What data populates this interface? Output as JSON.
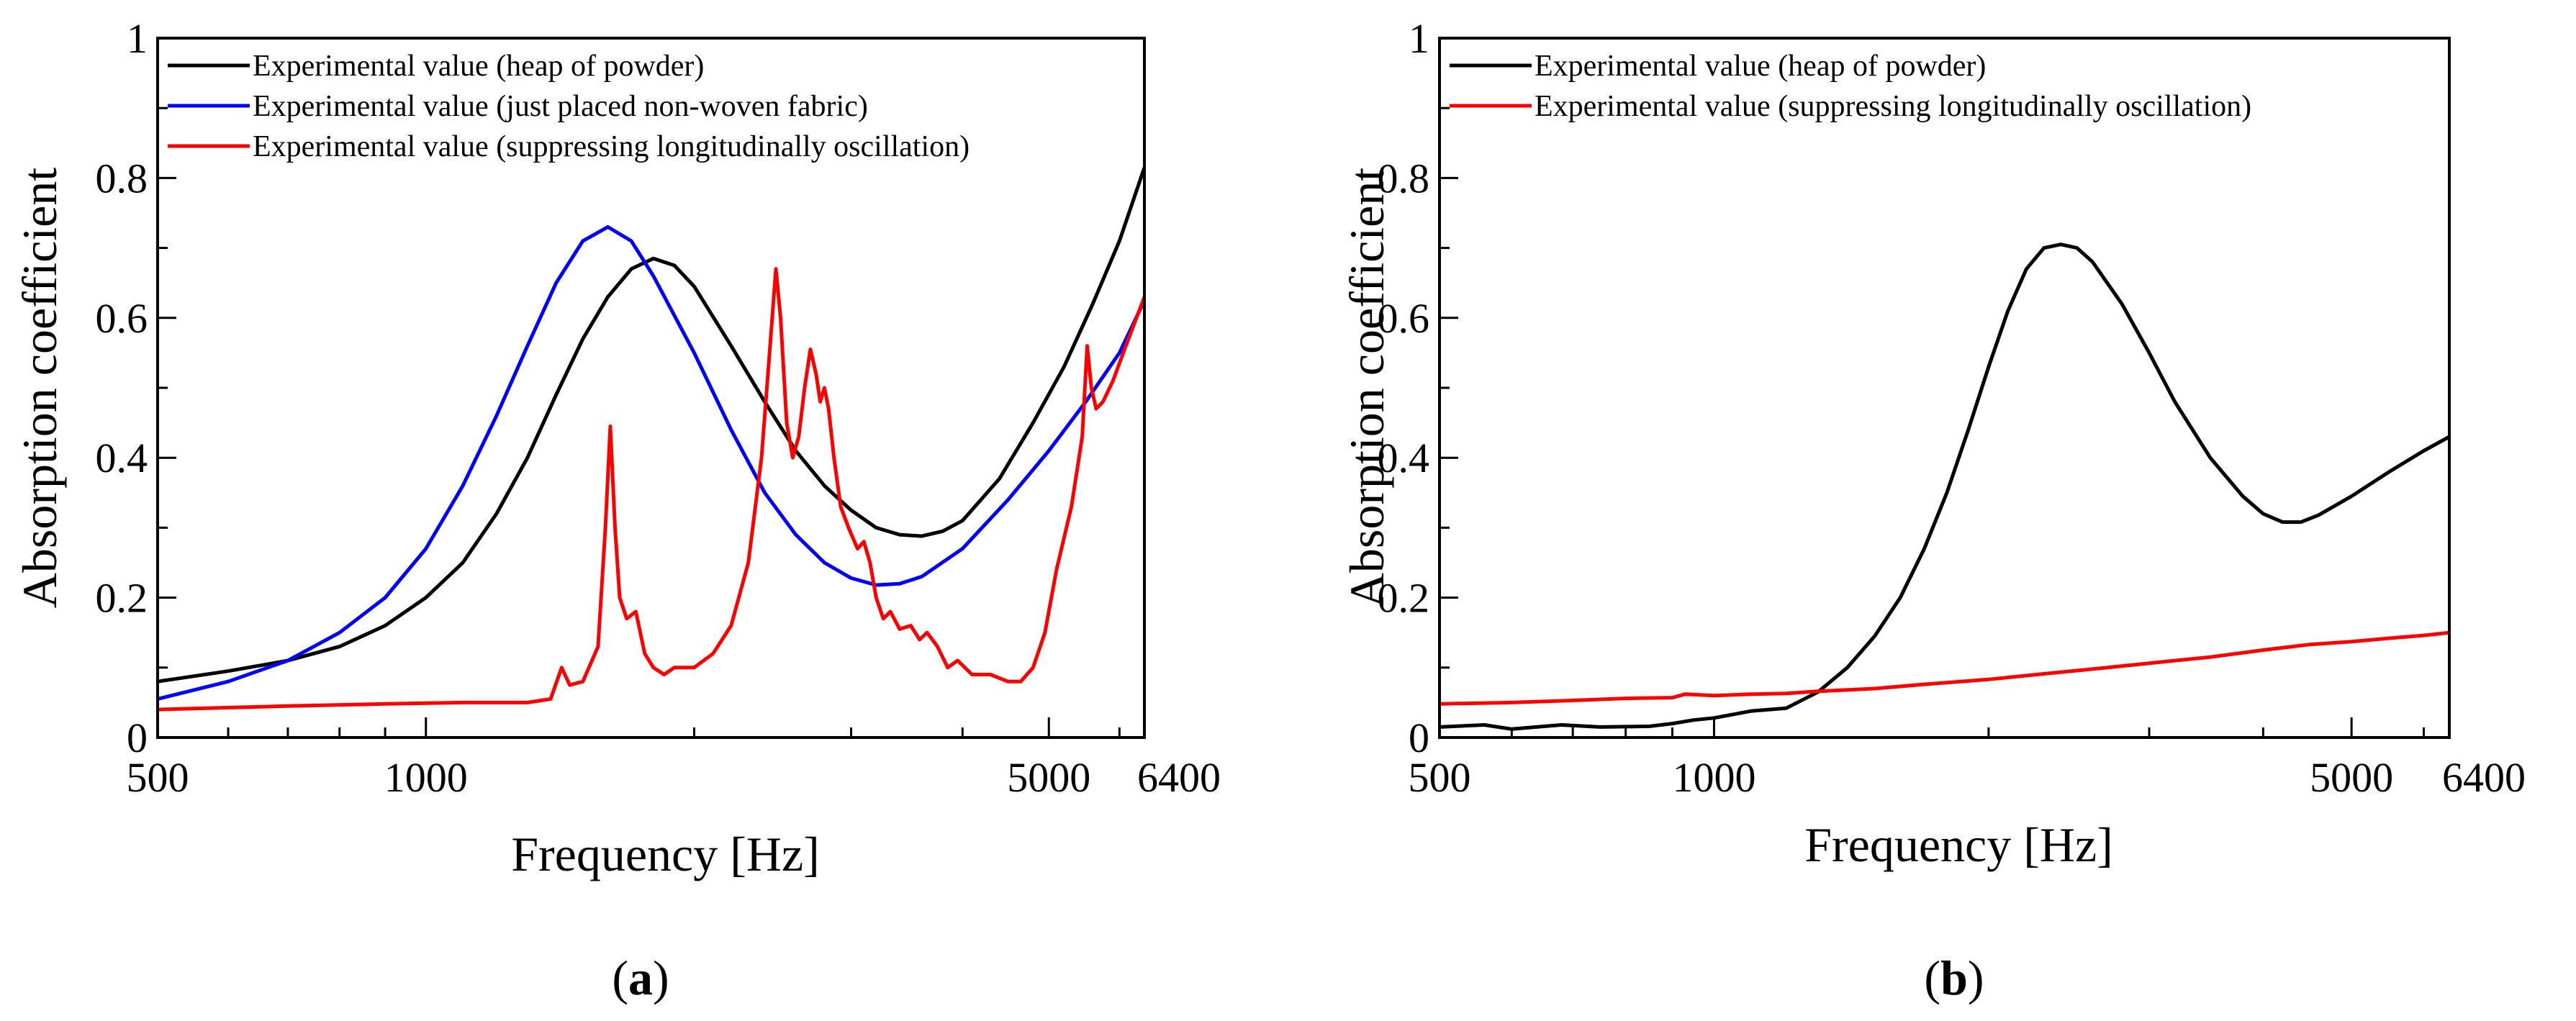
{
  "chart_data": [
    {
      "panel": "(a)",
      "panel_letter": "a",
      "type": "line",
      "xscale": "log",
      "xlabel": "Frequency [Hz]",
      "ylabel": "Absorption coefficient",
      "xlim": [
        500,
        6400
      ],
      "ylim": [
        0,
        1
      ],
      "xtick_values": [
        500,
        1000,
        5000,
        6400
      ],
      "xtick_labels": [
        "500",
        "1000",
        "5000",
        "6400"
      ],
      "ytick_values": [
        0,
        0.2,
        0.4,
        0.6,
        0.8,
        1
      ],
      "ytick_labels": [
        "0",
        "0.2",
        "0.4",
        "0.6",
        "0.8",
        "1"
      ],
      "legend_position": "top-left",
      "series": [
        {
          "name": "Experimental value (heap of powder)",
          "color": "#000000",
          "points": [
            [
              500,
              0.08
            ],
            [
              600,
              0.095
            ],
            [
              700,
              0.11
            ],
            [
              800,
              0.13
            ],
            [
              900,
              0.16
            ],
            [
              1000,
              0.2
            ],
            [
              1100,
              0.25
            ],
            [
              1200,
              0.32
            ],
            [
              1300,
              0.4
            ],
            [
              1400,
              0.49
            ],
            [
              1500,
              0.57
            ],
            [
              1600,
              0.63
            ],
            [
              1700,
              0.67
            ],
            [
              1800,
              0.685
            ],
            [
              1900,
              0.675
            ],
            [
              2000,
              0.645
            ],
            [
              2200,
              0.56
            ],
            [
              2400,
              0.48
            ],
            [
              2600,
              0.41
            ],
            [
              2800,
              0.36
            ],
            [
              3000,
              0.325
            ],
            [
              3200,
              0.3
            ],
            [
              3400,
              0.29
            ],
            [
              3600,
              0.288
            ],
            [
              3800,
              0.295
            ],
            [
              4000,
              0.31
            ],
            [
              4400,
              0.37
            ],
            [
              4800,
              0.45
            ],
            [
              5200,
              0.53
            ],
            [
              5600,
              0.62
            ],
            [
              6000,
              0.71
            ],
            [
              6400,
              0.815
            ]
          ]
        },
        {
          "name": "Experimental value (just placed non-woven fabric)",
          "color": "#0000ff",
          "points": [
            [
              500,
              0.055
            ],
            [
              600,
              0.08
            ],
            [
              700,
              0.11
            ],
            [
              800,
              0.15
            ],
            [
              900,
              0.2
            ],
            [
              1000,
              0.27
            ],
            [
              1100,
              0.36
            ],
            [
              1200,
              0.46
            ],
            [
              1300,
              0.56
            ],
            [
              1400,
              0.65
            ],
            [
              1500,
              0.71
            ],
            [
              1600,
              0.73
            ],
            [
              1700,
              0.71
            ],
            [
              1800,
              0.66
            ],
            [
              2000,
              0.55
            ],
            [
              2200,
              0.44
            ],
            [
              2400,
              0.35
            ],
            [
              2600,
              0.29
            ],
            [
              2800,
              0.25
            ],
            [
              3000,
              0.228
            ],
            [
              3200,
              0.218
            ],
            [
              3400,
              0.22
            ],
            [
              3600,
              0.23
            ],
            [
              4000,
              0.27
            ],
            [
              4500,
              0.34
            ],
            [
              5000,
              0.41
            ],
            [
              5500,
              0.48
            ],
            [
              6000,
              0.55
            ],
            [
              6400,
              0.625
            ]
          ]
        },
        {
          "name": "Experimental value (suppressing longitudinally oscillation)",
          "color": "#ff0000",
          "points": [
            [
              500,
              0.04
            ],
            [
              700,
              0.045
            ],
            [
              900,
              0.048
            ],
            [
              1100,
              0.05
            ],
            [
              1300,
              0.05
            ],
            [
              1380,
              0.055
            ],
            [
              1420,
              0.1
            ],
            [
              1450,
              0.075
            ],
            [
              1500,
              0.08
            ],
            [
              1560,
              0.13
            ],
            [
              1590,
              0.3
            ],
            [
              1610,
              0.445
            ],
            [
              1630,
              0.3
            ],
            [
              1650,
              0.2
            ],
            [
              1680,
              0.17
            ],
            [
              1720,
              0.18
            ],
            [
              1760,
              0.12
            ],
            [
              1800,
              0.1
            ],
            [
              1850,
              0.09
            ],
            [
              1900,
              0.1
            ],
            [
              2000,
              0.1
            ],
            [
              2100,
              0.12
            ],
            [
              2200,
              0.16
            ],
            [
              2300,
              0.25
            ],
            [
              2380,
              0.4
            ],
            [
              2430,
              0.55
            ],
            [
              2470,
              0.67
            ],
            [
              2500,
              0.6
            ],
            [
              2540,
              0.45
            ],
            [
              2580,
              0.4
            ],
            [
              2620,
              0.43
            ],
            [
              2660,
              0.5
            ],
            [
              2700,
              0.555
            ],
            [
              2740,
              0.52
            ],
            [
              2770,
              0.48
            ],
            [
              2800,
              0.5
            ],
            [
              2830,
              0.47
            ],
            [
              2870,
              0.4
            ],
            [
              2920,
              0.33
            ],
            [
              2980,
              0.3
            ],
            [
              3050,
              0.27
            ],
            [
              3100,
              0.28
            ],
            [
              3150,
              0.25
            ],
            [
              3200,
              0.2
            ],
            [
              3260,
              0.17
            ],
            [
              3320,
              0.18
            ],
            [
              3400,
              0.155
            ],
            [
              3500,
              0.16
            ],
            [
              3580,
              0.14
            ],
            [
              3650,
              0.15
            ],
            [
              3750,
              0.13
            ],
            [
              3850,
              0.1
            ],
            [
              3950,
              0.11
            ],
            [
              4100,
              0.09
            ],
            [
              4300,
              0.09
            ],
            [
              4500,
              0.08
            ],
            [
              4650,
              0.08
            ],
            [
              4800,
              0.1
            ],
            [
              4950,
              0.15
            ],
            [
              5100,
              0.24
            ],
            [
              5300,
              0.33
            ],
            [
              5450,
              0.43
            ],
            [
              5520,
              0.56
            ],
            [
              5580,
              0.5
            ],
            [
              5650,
              0.47
            ],
            [
              5750,
              0.48
            ],
            [
              5900,
              0.51
            ],
            [
              6100,
              0.56
            ],
            [
              6400,
              0.63
            ]
          ]
        }
      ]
    },
    {
      "panel": "(b)",
      "panel_letter": "b",
      "type": "line",
      "xscale": "log",
      "xlabel": "Frequency [Hz]",
      "ylabel": "Absorption coefficient",
      "xlim": [
        500,
        6400
      ],
      "ylim": [
        0,
        1
      ],
      "xtick_values": [
        500,
        1000,
        5000,
        6400
      ],
      "xtick_labels": [
        "500",
        "1000",
        "5000",
        "6400"
      ],
      "ytick_values": [
        0,
        0.2,
        0.4,
        0.6,
        0.8,
        1
      ],
      "ytick_labels": [
        "0",
        "0.2",
        "0.4",
        "0.6",
        "0.8",
        "1"
      ],
      "legend_position": "top-left",
      "series": [
        {
          "name": "Experimental value (heap of powder)",
          "color": "#000000",
          "points": [
            [
              500,
              0.015
            ],
            [
              560,
              0.018
            ],
            [
              600,
              0.012
            ],
            [
              680,
              0.018
            ],
            [
              750,
              0.015
            ],
            [
              850,
              0.016
            ],
            [
              900,
              0.02
            ],
            [
              950,
              0.025
            ],
            [
              1000,
              0.028
            ],
            [
              1100,
              0.038
            ],
            [
              1200,
              0.042
            ],
            [
              1300,
              0.065
            ],
            [
              1400,
              0.1
            ],
            [
              1500,
              0.145
            ],
            [
              1600,
              0.2
            ],
            [
              1700,
              0.27
            ],
            [
              1800,
              0.35
            ],
            [
              1900,
              0.44
            ],
            [
              2000,
              0.53
            ],
            [
              2100,
              0.61
            ],
            [
              2200,
              0.67
            ],
            [
              2300,
              0.7
            ],
            [
              2400,
              0.705
            ],
            [
              2500,
              0.7
            ],
            [
              2600,
              0.68
            ],
            [
              2800,
              0.62
            ],
            [
              3000,
              0.55
            ],
            [
              3200,
              0.48
            ],
            [
              3500,
              0.4
            ],
            [
              3800,
              0.345
            ],
            [
              4000,
              0.32
            ],
            [
              4200,
              0.308
            ],
            [
              4400,
              0.308
            ],
            [
              4600,
              0.318
            ],
            [
              5000,
              0.345
            ],
            [
              5500,
              0.38
            ],
            [
              6000,
              0.41
            ],
            [
              6400,
              0.43
            ]
          ]
        },
        {
          "name": "Experimental value (suppressing longitudinally oscillation)",
          "color": "#ff0000",
          "points": [
            [
              500,
              0.048
            ],
            [
              600,
              0.05
            ],
            [
              700,
              0.053
            ],
            [
              800,
              0.056
            ],
            [
              900,
              0.057
            ],
            [
              930,
              0.062
            ],
            [
              1000,
              0.06
            ],
            [
              1100,
              0.062
            ],
            [
              1200,
              0.063
            ],
            [
              1300,
              0.066
            ],
            [
              1500,
              0.07
            ],
            [
              1700,
              0.076
            ],
            [
              2000,
              0.083
            ],
            [
              2300,
              0.091
            ],
            [
              2700,
              0.1
            ],
            [
              3200,
              0.11
            ],
            [
              3500,
              0.115
            ],
            [
              4000,
              0.125
            ],
            [
              4500,
              0.133
            ],
            [
              5000,
              0.137
            ],
            [
              5500,
              0.142
            ],
            [
              6000,
              0.146
            ],
            [
              6400,
              0.15
            ]
          ]
        }
      ]
    }
  ]
}
